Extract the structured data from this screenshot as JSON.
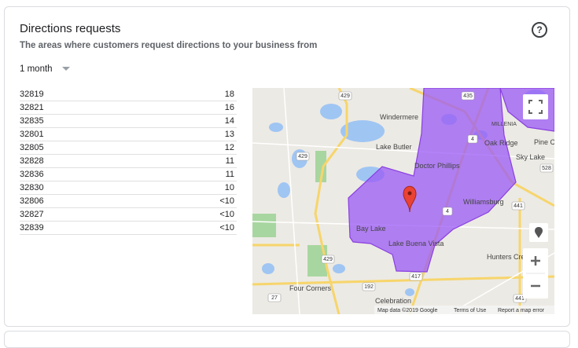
{
  "header": {
    "title": "Directions requests",
    "subtitle": "The areas where customers request directions to your business from"
  },
  "period": "1 month",
  "table": {
    "rows": [
      [
        "32819",
        18
      ],
      [
        "32821",
        16
      ],
      [
        "32835",
        14
      ],
      [
        "32801",
        13
      ],
      [
        "32805",
        12
      ],
      [
        "32828",
        11
      ],
      [
        "32836",
        11
      ],
      [
        "32830",
        10
      ],
      [
        "32806",
        "<10"
      ],
      [
        "32827",
        "<10"
      ],
      [
        "32839",
        "<10"
      ]
    ]
  },
  "map": {
    "labels": [
      "Windermere",
      "Lake Butler",
      "Doctor Phillips",
      "Oak Ridge",
      "Sky Lake",
      "Williamsburg",
      "Bay Lake",
      "Lake Buena Vista",
      "Hunters Cree",
      "Four Corners",
      "Celebration",
      "MILLENIA",
      "Pine C"
    ],
    "road_shields": [
      "429",
      "435",
      "429",
      "528",
      "441",
      "429",
      "417",
      "192",
      "27",
      "441",
      "4",
      "4"
    ],
    "footer": [
      "Map data ©2019 Google",
      "Terms of Use",
      "Report a map error"
    ]
  }
}
